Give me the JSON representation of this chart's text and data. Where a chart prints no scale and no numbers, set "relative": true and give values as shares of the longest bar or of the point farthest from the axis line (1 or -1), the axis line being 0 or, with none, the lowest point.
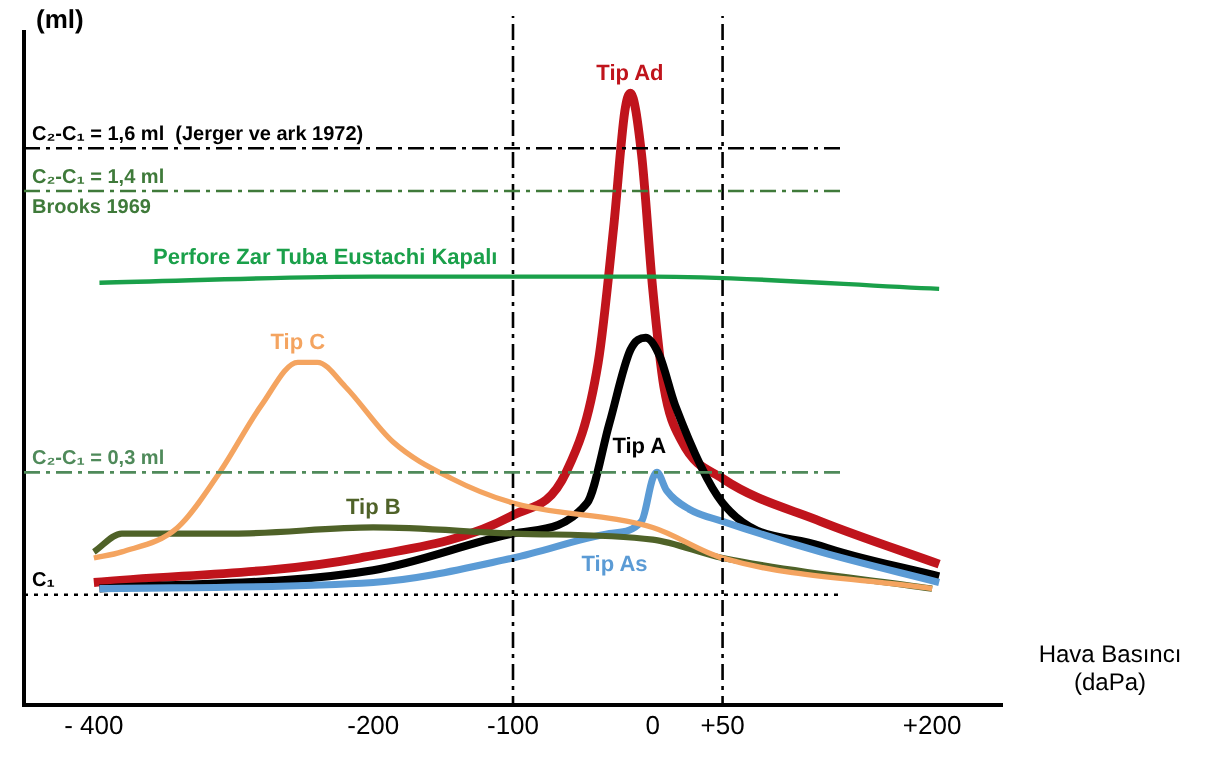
{
  "chart_data": {
    "type": "line",
    "relative": true,
    "ylabel": "(ml)",
    "xlabel": "Hava Basıncı (daPa)",
    "xlim": [
      -450,
      250
    ],
    "xticks": [
      {
        "value": -400,
        "label": "- 400"
      },
      -200,
      -100,
      0,
      {
        "value": 50,
        "label": "+50"
      },
      {
        "value": 200,
        "label": "+200"
      }
    ],
    "grid": false,
    "legend": false,
    "marker": "none",
    "line_style": "solid",
    "series": [
      {
        "name": "Perfore Zar Tuba Eustachi Kapalı",
        "color": "#1aa04a",
        "x": [
          -396,
          -200,
          0,
          205
        ],
        "values": [
          0.69,
          0.7,
          0.7,
          0.68
        ]
      },
      {
        "name": "Tip C",
        "color": "#f4a460",
        "x": [
          -400,
          -380,
          -340,
          -310,
          -280,
          -254,
          -240,
          -220,
          -186,
          -144,
          -100,
          0,
          50,
          200
        ],
        "values": [
          0.24,
          0.25,
          0.29,
          0.38,
          0.49,
          0.56,
          0.56,
          0.52,
          0.43,
          0.37,
          0.33,
          0.29,
          0.24,
          0.19
        ]
      },
      {
        "name": "Tip B",
        "color": "#4f6228",
        "x": [
          -400,
          -380,
          -300,
          -200,
          -100,
          0,
          50,
          200
        ],
        "values": [
          0.25,
          0.28,
          0.28,
          0.29,
          0.28,
          0.27,
          0.24,
          0.19
        ]
      },
      {
        "name": "Tip As",
        "color": "#5b9bd5",
        "x": [
          -396,
          -200,
          -100,
          -31,
          -8,
          0,
          3,
          10,
          26,
          50,
          120,
          205
        ],
        "values": [
          0.19,
          0.2,
          0.24,
          0.28,
          0.3,
          0.37,
          0.38,
          0.35,
          0.32,
          0.3,
          0.25,
          0.2
        ]
      },
      {
        "name": "Tip A",
        "color": "#000000",
        "x": [
          -396,
          -200,
          -100,
          -47,
          -31,
          -16,
          -5,
          5,
          16,
          50,
          120,
          205
        ],
        "values": [
          0.19,
          0.22,
          0.28,
          0.33,
          0.46,
          0.58,
          0.6,
          0.57,
          0.49,
          0.33,
          0.26,
          0.21
        ]
      },
      {
        "name": "Tip Ad",
        "color": "#c0141c",
        "x": [
          -400,
          -210,
          -100,
          -62,
          -39,
          -28,
          -20,
          -16,
          -8,
          0,
          8,
          21,
          50,
          120,
          205
        ],
        "values": [
          0.2,
          0.24,
          0.31,
          0.38,
          0.56,
          0.78,
          0.97,
          1,
          0.9,
          0.68,
          0.52,
          0.43,
          0.37,
          0.3,
          0.23
        ]
      }
    ],
    "ref_lines": [
      {
        "axis": "x",
        "value": -100,
        "color": "#000000",
        "line_style": "dashed"
      },
      {
        "axis": "x",
        "value": 50,
        "color": "#000000",
        "line_style": "dashed"
      },
      {
        "axis": "y",
        "value": 0.91,
        "color": "#000000",
        "line_style": "dashed"
      },
      {
        "axis": "y",
        "value": 0.84,
        "color": "#3f7a3a",
        "line_style": "dashed"
      },
      {
        "axis": "y",
        "value": 0.38,
        "color": "#4f8a5a",
        "line_style": "dashed"
      },
      {
        "axis": "y",
        "value": 0.18,
        "label": "C₁",
        "color": "#000000",
        "line_style": "dotted"
      }
    ],
    "annotations": [
      {
        "text": "C₂-C₁ = 1,6 ml  (Jerger ve ark 1972)",
        "y": 0.91
      },
      {
        "text": "C₂-C₁ = 1,4 ml\nBrooks 1969",
        "y": 0.84
      },
      {
        "text": "C₂-C₁ = 0,3 ml",
        "y": 0.38
      }
    ]
  }
}
